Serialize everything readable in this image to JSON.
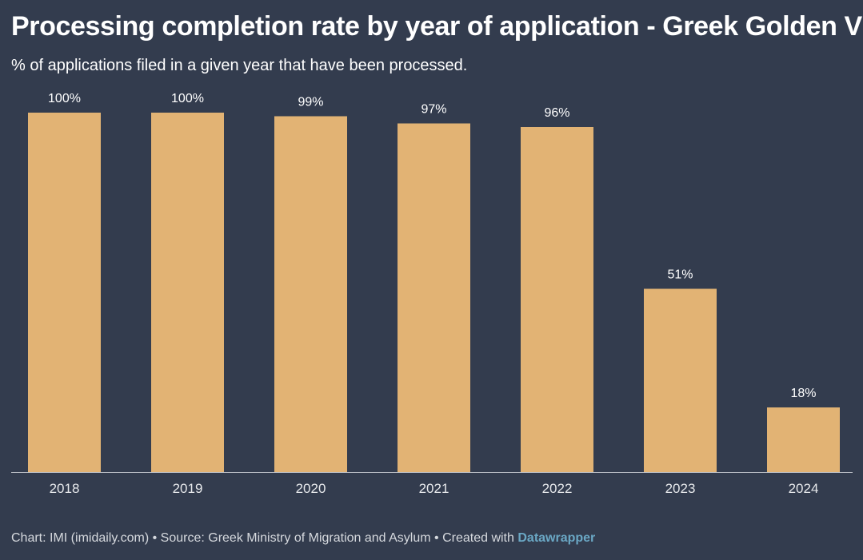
{
  "title": "Processing completion rate by year of application - Greek Golden Visa",
  "subtitle": "% of applications filed in a given year that have been processed.",
  "chart_data": {
    "type": "bar",
    "categories": [
      "2018",
      "2019",
      "2020",
      "2021",
      "2022",
      "2023",
      "2024"
    ],
    "values": [
      100,
      100,
      99,
      97,
      96,
      51,
      18
    ],
    "value_labels": [
      "100%",
      "100%",
      "99%",
      "97%",
      "96%",
      "51%",
      "18%"
    ],
    "ylim": [
      0,
      100
    ],
    "grid": false,
    "bar_color": "#e2b374",
    "background_color": "#333c4e",
    "text_color": "#ffffff"
  },
  "footer": {
    "chart_credit": "Chart: IMI (imidaily.com)",
    "separator": " • ",
    "source": "Source: Greek Ministry of Migration and Asylum",
    "created_with": "Created with",
    "brand": "Datawrapper"
  }
}
